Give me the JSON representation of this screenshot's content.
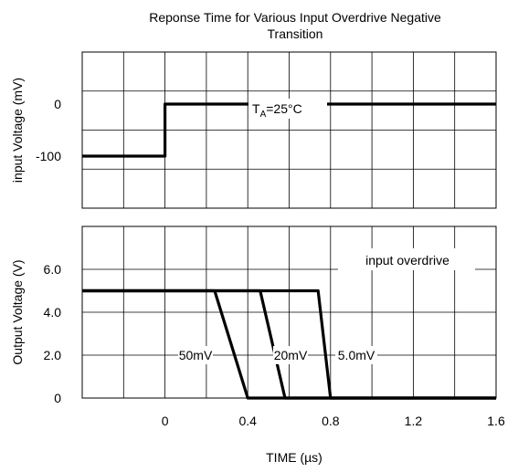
{
  "chart_data": {
    "type": "line",
    "title": "Reponse Time for Various Input Overdrive Negative Transition",
    "title_lines": [
      "Reponse Time for Various Input Overdrive Negative",
      "Transition"
    ],
    "xlabel": "TIME (µs)",
    "x_ticks": [
      "0",
      "0.4",
      "0.8",
      "1.2",
      "1.6"
    ],
    "x_tick_values": [
      0,
      0.4,
      0.8,
      1.2,
      1.6
    ],
    "xlim": [
      -0.4,
      1.6
    ],
    "grid": true,
    "panels": [
      {
        "name": "input",
        "ylabel": "input Voltage   (mV)",
        "ylim": [
          -200,
          100
        ],
        "y_ticks": [
          "0",
          "-100"
        ],
        "y_tick_values": [
          0,
          -100
        ],
        "annotation": {
          "prefix": "T",
          "sub": "A",
          "suffix": "=25°C"
        },
        "series": [
          {
            "x": [
              -0.4,
              0,
              0,
              1.6
            ],
            "y": [
              -100,
              -100,
              0,
              0
            ]
          }
        ]
      },
      {
        "name": "output",
        "ylabel": "Output Voltage  (V)",
        "ylim": [
          0,
          8
        ],
        "y_ticks": [
          "6.0",
          "4.0",
          "2.0",
          "0"
        ],
        "y_tick_values": [
          6,
          4,
          2,
          0
        ],
        "legend_title": "input overdrive",
        "series": [
          {
            "name": "50mV",
            "x": [
              -0.4,
              0.24,
              0.4,
              1.6
            ],
            "y": [
              5,
              5,
              0,
              0
            ]
          },
          {
            "name": "20mV",
            "x": [
              -0.4,
              0.46,
              0.58,
              1.6
            ],
            "y": [
              5,
              5,
              0,
              0
            ]
          },
          {
            "name": "5.0mV",
            "x": [
              -0.4,
              0.74,
              0.8,
              1.6
            ],
            "y": [
              5,
              5,
              0,
              0
            ]
          }
        ],
        "series_label_y": 2.0
      }
    ]
  }
}
